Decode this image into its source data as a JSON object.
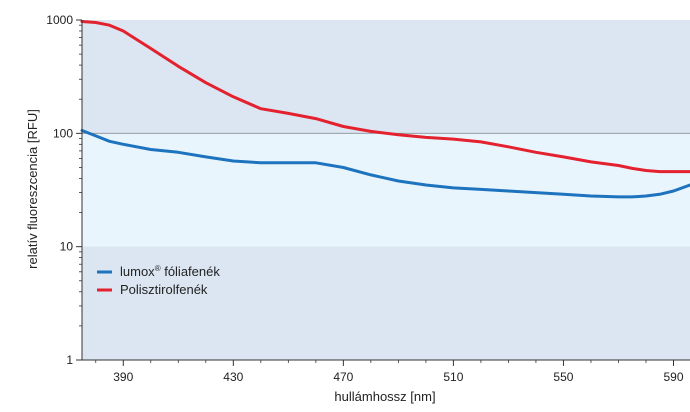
{
  "chart_data": {
    "type": "line",
    "xlabel": "hullámhossz [nm]",
    "ylabel": "relatív fluoreszcencia [RFU]",
    "y_scale": "log",
    "ylim": [
      1,
      1000
    ],
    "xlim": [
      375,
      596
    ],
    "xticks": [
      "390",
      "430",
      "470",
      "510",
      "550",
      "590"
    ],
    "yticks": [
      "1",
      "10",
      "100",
      "1000"
    ],
    "legend_position": "left",
    "x": [
      375,
      380,
      385,
      390,
      400,
      410,
      420,
      430,
      440,
      450,
      460,
      470,
      480,
      490,
      500,
      510,
      520,
      530,
      540,
      550,
      560,
      570,
      575,
      580,
      585,
      590,
      596
    ],
    "series": [
      {
        "name_main": "lumox",
        "name_sup": "®",
        "name_rest": " fóliafenék",
        "color": "#1e73be",
        "values": [
          106,
          95,
          85,
          80,
          72,
          68,
          62,
          57,
          55,
          55,
          55,
          50,
          43,
          38,
          35,
          33,
          32,
          31,
          30,
          29,
          28,
          27.5,
          27.5,
          28,
          29,
          31,
          35
        ]
      },
      {
        "name": "Polisztirolfenék",
        "color": "#e3212f",
        "values": [
          970,
          950,
          900,
          800,
          560,
          390,
          280,
          210,
          165,
          150,
          135,
          115,
          104,
          97,
          92,
          89,
          84,
          76,
          68,
          62,
          56,
          52,
          49,
          47,
          46,
          46,
          46
        ]
      }
    ],
    "bands": {
      "outer_color": "#dbe6f2",
      "middle_color": "#e9f5fc",
      "middle_range": [
        10,
        100
      ]
    }
  }
}
